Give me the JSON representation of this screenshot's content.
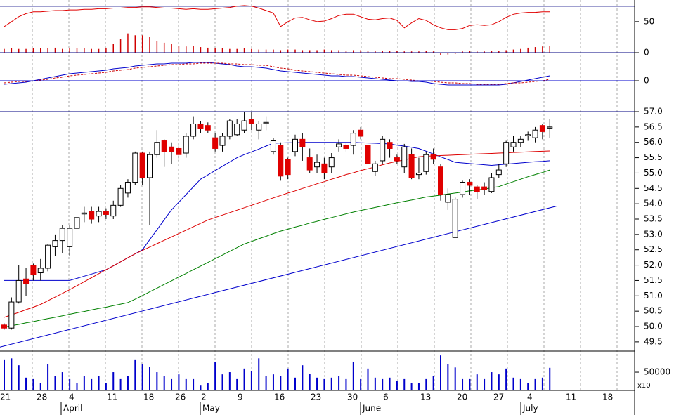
{
  "chart_data": [
    {
      "type": "line",
      "ylim": [
        0,
        85
      ],
      "yticks": [
        0,
        50
      ],
      "reference_lines": [
        75
      ],
      "series": [
        {
          "color": "#e00000",
          "values": [
            42,
            50,
            58,
            63,
            66,
            66,
            67,
            68,
            68,
            69,
            69,
            70,
            70,
            71,
            71,
            72,
            72,
            73,
            73,
            74,
            74,
            73,
            72,
            72,
            71,
            70,
            71,
            70,
            70,
            71,
            72,
            73,
            75,
            76,
            75,
            72,
            68,
            64,
            42,
            50,
            56,
            57,
            53,
            50,
            51,
            55,
            60,
            62,
            62,
            58,
            54,
            53,
            55,
            56,
            52,
            40,
            48,
            55,
            52,
            45,
            40,
            37,
            37,
            39,
            44,
            45,
            44,
            45,
            50,
            57,
            62,
            64,
            65,
            65,
            66,
            66
          ]
        }
      ],
      "bars": {
        "color": "#d00000",
        "values": [
          6,
          7,
          6,
          6,
          7,
          7,
          7,
          8,
          6,
          7,
          7,
          7,
          6,
          6,
          8,
          14,
          22,
          31,
          28,
          28,
          25,
          19,
          16,
          14,
          11,
          10,
          11,
          9,
          8,
          7,
          7,
          6,
          6,
          7,
          6,
          5,
          5,
          5,
          4,
          5,
          5,
          4,
          4,
          4,
          5,
          4,
          4,
          3,
          4,
          4,
          3,
          3,
          3,
          3,
          3,
          2,
          2,
          2,
          3,
          2,
          -4,
          -3,
          -2,
          2,
          3,
          2,
          2,
          3,
          3,
          4,
          5,
          6,
          8,
          9,
          10,
          11
        ]
      }
    },
    {
      "type": "line",
      "ylim": [
        -4.2,
        3.8
      ],
      "yticks": [
        0
      ],
      "series": [
        {
          "color": "#0000cc",
          "values": [
            -0.5,
            -0.4,
            -0.3,
            -0.2,
            0.0,
            0.2,
            0.4,
            0.6,
            0.8,
            1.0,
            1.1,
            1.2,
            1.3,
            1.4,
            1.5,
            1.7,
            1.8,
            1.9,
            2.1,
            2.2,
            2.3,
            2.4,
            2.4,
            2.5,
            2.5,
            2.5,
            2.6,
            2.6,
            2.6,
            2.5,
            2.4,
            2.3,
            2.1,
            2.0,
            2.0,
            1.9,
            1.8,
            1.6,
            1.4,
            1.3,
            1.2,
            1.1,
            1.0,
            0.9,
            0.8,
            0.7,
            0.7,
            0.6,
            0.6,
            0.5,
            0.4,
            0.3,
            0.2,
            0.1,
            0.0,
            0.0,
            -0.1,
            -0.1,
            -0.2,
            -0.4,
            -0.5,
            -0.6,
            -0.6,
            -0.6,
            -0.6,
            -0.6,
            -0.6,
            -0.6,
            -0.6,
            -0.5,
            -0.3,
            -0.1,
            0.1,
            0.3,
            0.5,
            0.7
          ]
        },
        {
          "color": "#cc0000",
          "dashed": true,
          "values": [
            -0.3,
            -0.2,
            -0.1,
            -0.1,
            0.0,
            0.1,
            0.2,
            0.4,
            0.5,
            0.7,
            0.8,
            0.9,
            1.0,
            1.1,
            1.2,
            1.4,
            1.5,
            1.6,
            1.8,
            1.9,
            2.0,
            2.1,
            2.2,
            2.3,
            2.3,
            2.4,
            2.4,
            2.5,
            2.5,
            2.5,
            2.5,
            2.4,
            2.4,
            2.3,
            2.3,
            2.2,
            2.2,
            2.0,
            1.8,
            1.7,
            1.5,
            1.4,
            1.3,
            1.2,
            1.1,
            1.0,
            0.9,
            0.8,
            0.8,
            0.7,
            0.6,
            0.5,
            0.4,
            0.3,
            0.3,
            0.2,
            0.1,
            0.0,
            0.0,
            -0.1,
            -0.2,
            -0.3,
            -0.3,
            -0.4,
            -0.4,
            -0.5,
            -0.5,
            -0.5,
            -0.5,
            -0.4,
            -0.3,
            -0.3,
            -0.2,
            -0.1,
            0.0,
            0.2
          ]
        }
      ]
    },
    {
      "type": "candlestick",
      "ylim": [
        49.2,
        57.0
      ],
      "yticks": [
        49.5,
        {
          "value": 50,
          "label": "50.0"
        },
        50.5,
        {
          "value": 51,
          "label": "51.0"
        },
        51.5,
        {
          "value": 52,
          "label": "52.0"
        },
        52.5,
        {
          "value": 53,
          "label": "53.0"
        },
        53.5,
        {
          "value": 54,
          "label": "54.0"
        },
        54.5,
        {
          "value": 55,
          "label": "55.0"
        },
        55.5,
        {
          "value": 56,
          "label": "56.0"
        },
        56.5,
        {
          "value": 57,
          "label": "57.0"
        }
      ],
      "up_color": "#ffffff",
      "down_color": "#e00000",
      "open": [
        50.05,
        49.95,
        50.8,
        51.55,
        52.0,
        51.75,
        51.9,
        52.6,
        52.8,
        52.6,
        53.2,
        53.7,
        53.75,
        53.6,
        53.75,
        53.6,
        53.95,
        54.35,
        54.7,
        55.65,
        54.85,
        55.6,
        56.05,
        55.85,
        55.8,
        55.65,
        56.2,
        56.6,
        56.55,
        56.15,
        55.9,
        56.2,
        56.25,
        56.4,
        56.75,
        56.4,
        56.65,
        55.7,
        55.9,
        55.45,
        55.7,
        56.1,
        55.5,
        55.2,
        55.3,
        55.2,
        55.85,
        55.9,
        55.9,
        56.4,
        55.9,
        55.05,
        55.4,
        56.0,
        55.5,
        55.2,
        55.6,
        54.95,
        55.05,
        55.6,
        55.2,
        54.05,
        52.9,
        54.3,
        54.7,
        54.55,
        54.55,
        54.4,
        54.95,
        55.3,
        55.85,
        56.0,
        56.25,
        56.15,
        56.55,
        56.5
      ],
      "high": [
        50.1,
        50.95,
        52.0,
        51.9,
        52.05,
        52.2,
        52.7,
        53.0,
        53.3,
        53.3,
        53.8,
        53.9,
        53.9,
        53.9,
        53.85,
        54.1,
        54.6,
        54.8,
        55.7,
        55.7,
        55.7,
        56.4,
        56.1,
        56.0,
        55.9,
        56.3,
        56.85,
        56.7,
        56.65,
        56.3,
        56.3,
        56.75,
        56.75,
        57.0,
        57.0,
        56.7,
        56.85,
        56.15,
        56.0,
        55.5,
        56.25,
        56.3,
        55.8,
        55.6,
        55.5,
        55.65,
        56.1,
        56.0,
        56.4,
        56.5,
        56.0,
        55.4,
        56.2,
        56.1,
        55.6,
        55.95,
        55.8,
        55.5,
        55.7,
        55.8,
        55.3,
        54.5,
        54.2,
        54.75,
        54.8,
        54.6,
        54.7,
        55.0,
        55.3,
        56.05,
        56.2,
        56.2,
        56.35,
        56.5,
        56.6,
        56.75
      ],
      "low": [
        49.9,
        49.9,
        50.75,
        51.0,
        51.5,
        51.5,
        51.8,
        52.3,
        52.4,
        52.3,
        53.1,
        53.4,
        53.35,
        53.4,
        53.5,
        53.5,
        53.9,
        54.2,
        54.6,
        54.6,
        53.3,
        55.5,
        55.2,
        55.3,
        55.4,
        55.5,
        56.1,
        56.3,
        56.3,
        55.7,
        55.7,
        56.1,
        56.2,
        56.3,
        56.4,
        56.1,
        56.4,
        55.6,
        54.75,
        54.8,
        55.55,
        55.4,
        55.0,
        55.0,
        54.8,
        55.0,
        55.7,
        55.7,
        55.6,
        56.1,
        55.2,
        54.9,
        55.3,
        55.5,
        55.3,
        55.0,
        54.8,
        54.8,
        54.95,
        55.3,
        54.1,
        53.8,
        52.9,
        54.2,
        54.3,
        54.15,
        54.3,
        54.35,
        54.85,
        55.2,
        55.7,
        55.85,
        56.05,
        56.0,
        56.1,
        56.15
      ],
      "close": [
        49.95,
        50.8,
        51.5,
        51.4,
        51.7,
        51.9,
        52.65,
        52.8,
        53.2,
        53.2,
        53.55,
        53.7,
        53.5,
        53.75,
        53.65,
        53.95,
        54.5,
        54.7,
        55.65,
        54.85,
        55.6,
        56.0,
        55.7,
        55.7,
        55.6,
        56.2,
        56.6,
        56.45,
        56.4,
        55.8,
        56.2,
        56.7,
        56.6,
        56.7,
        56.6,
        56.6,
        56.65,
        56.05,
        54.9,
        54.95,
        56.1,
        55.85,
        55.1,
        55.35,
        55.0,
        55.5,
        55.95,
        55.8,
        56.3,
        56.2,
        55.3,
        55.3,
        56.1,
        55.8,
        55.4,
        55.85,
        54.85,
        55.0,
        55.6,
        55.45,
        54.3,
        54.3,
        54.15,
        54.7,
        54.6,
        54.4,
        54.45,
        54.85,
        55.1,
        56.0,
        56.0,
        56.1,
        56.25,
        56.4,
        56.35,
        56.5
      ],
      "series": [
        {
          "color": "#0000cc",
          "values": [
            51.5,
            51.5,
            51.5,
            51.5,
            51.5,
            51.5,
            51.5,
            51.5,
            51.5,
            51.5,
            51.57,
            51.64,
            51.71,
            51.78,
            51.85,
            51.98,
            52.11,
            52.24,
            52.37,
            52.5,
            52.83,
            53.15,
            53.48,
            53.8,
            54.05,
            54.3,
            54.55,
            54.8,
            54.94,
            55.08,
            55.22,
            55.36,
            55.5,
            55.6,
            55.69,
            55.78,
            55.88,
            55.97,
            55.98,
            55.99,
            55.99,
            56.0,
            56.0,
            56.0,
            56.0,
            56.0,
            56.0,
            56.0,
            56.0,
            55.99,
            55.98,
            55.97,
            55.96,
            55.95,
            55.91,
            55.88,
            55.84,
            55.8,
            55.71,
            55.62,
            55.53,
            55.44,
            55.35,
            55.33,
            55.31,
            55.29,
            55.27,
            55.25,
            55.27,
            55.29,
            55.31,
            55.33,
            55.35,
            55.37,
            55.38,
            55.4
          ]
        },
        {
          "color": "#dd0000",
          "values": [
            50.3,
            50.38,
            50.46,
            50.55,
            50.63,
            50.72,
            50.84,
            50.96,
            51.08,
            51.2,
            51.33,
            51.46,
            51.59,
            51.72,
            51.85,
            51.98,
            52.11,
            52.24,
            52.37,
            52.48,
            52.59,
            52.7,
            52.81,
            52.92,
            53.03,
            53.14,
            53.25,
            53.36,
            53.47,
            53.55,
            53.63,
            53.71,
            53.79,
            53.87,
            53.95,
            54.03,
            54.11,
            54.19,
            54.27,
            54.35,
            54.42,
            54.5,
            54.57,
            54.65,
            54.72,
            54.8,
            54.87,
            54.95,
            55.01,
            55.08,
            55.14,
            55.2,
            55.27,
            55.33,
            55.38,
            55.43,
            55.48,
            55.53,
            55.55,
            55.56,
            55.57,
            55.58,
            55.59,
            55.6,
            55.61,
            55.62,
            55.63,
            55.64,
            55.65,
            55.66,
            55.67,
            55.68,
            55.69,
            55.7,
            55.71,
            55.72
          ]
        },
        {
          "color": "#008000",
          "values": [
            49.98,
            50.03,
            50.07,
            50.12,
            50.16,
            50.21,
            50.26,
            50.3,
            50.35,
            50.4,
            50.45,
            50.49,
            50.54,
            50.59,
            50.63,
            50.68,
            50.73,
            50.78,
            50.89,
            51.01,
            51.13,
            51.25,
            51.37,
            51.49,
            51.61,
            51.73,
            51.85,
            51.97,
            52.09,
            52.21,
            52.33,
            52.45,
            52.57,
            52.69,
            52.77,
            52.86,
            52.94,
            53.03,
            53.11,
            53.17,
            53.24,
            53.3,
            53.37,
            53.43,
            53.49,
            53.55,
            53.61,
            53.67,
            53.73,
            53.78,
            53.83,
            53.88,
            53.93,
            53.98,
            54.03,
            54.08,
            54.12,
            54.17,
            54.22,
            54.25,
            54.28,
            54.32,
            54.35,
            54.38,
            54.42,
            54.45,
            54.48,
            54.52,
            54.56,
            54.64,
            54.72,
            54.8,
            54.88,
            54.95,
            55.02,
            55.1
          ]
        }
      ],
      "trendline": {
        "color": "#0000cc",
        "values": [
          49.33,
          53.93
        ]
      }
    },
    {
      "type": "bar",
      "ylim": [
        0,
        104000
      ],
      "yticks": [
        50000
      ],
      "multiplier_label": "x10",
      "color": "#0000cc",
      "values": [
        85000,
        88000,
        69000,
        35000,
        31000,
        21000,
        73000,
        40000,
        50000,
        31000,
        21000,
        40000,
        31000,
        40000,
        21000,
        50000,
        31000,
        40000,
        85000,
        73000,
        65000,
        50000,
        40000,
        31000,
        44000,
        31000,
        31000,
        15000,
        21000,
        79000,
        44000,
        50000,
        31000,
        60000,
        54000,
        88000,
        40000,
        44000,
        40000,
        60000,
        35000,
        69000,
        46000,
        35000,
        31000,
        35000,
        40000,
        31000,
        79000,
        31000,
        60000,
        35000,
        31000,
        35000,
        27000,
        31000,
        21000,
        21000,
        31000,
        40000,
        96000,
        73000,
        63000,
        31000,
        31000,
        44000,
        31000,
        50000,
        44000,
        60000,
        35000,
        31000,
        21000,
        31000,
        35000,
        62000
      ],
      "xtick_labels": [
        "21",
        "28",
        "4",
        "11",
        "18",
        "26",
        "2",
        "9",
        "16",
        "23",
        "30",
        "6",
        "13",
        "20",
        "27",
        "4",
        "11",
        "18"
      ],
      "month_labels": [
        "April",
        "May",
        "June",
        "July"
      ]
    }
  ]
}
